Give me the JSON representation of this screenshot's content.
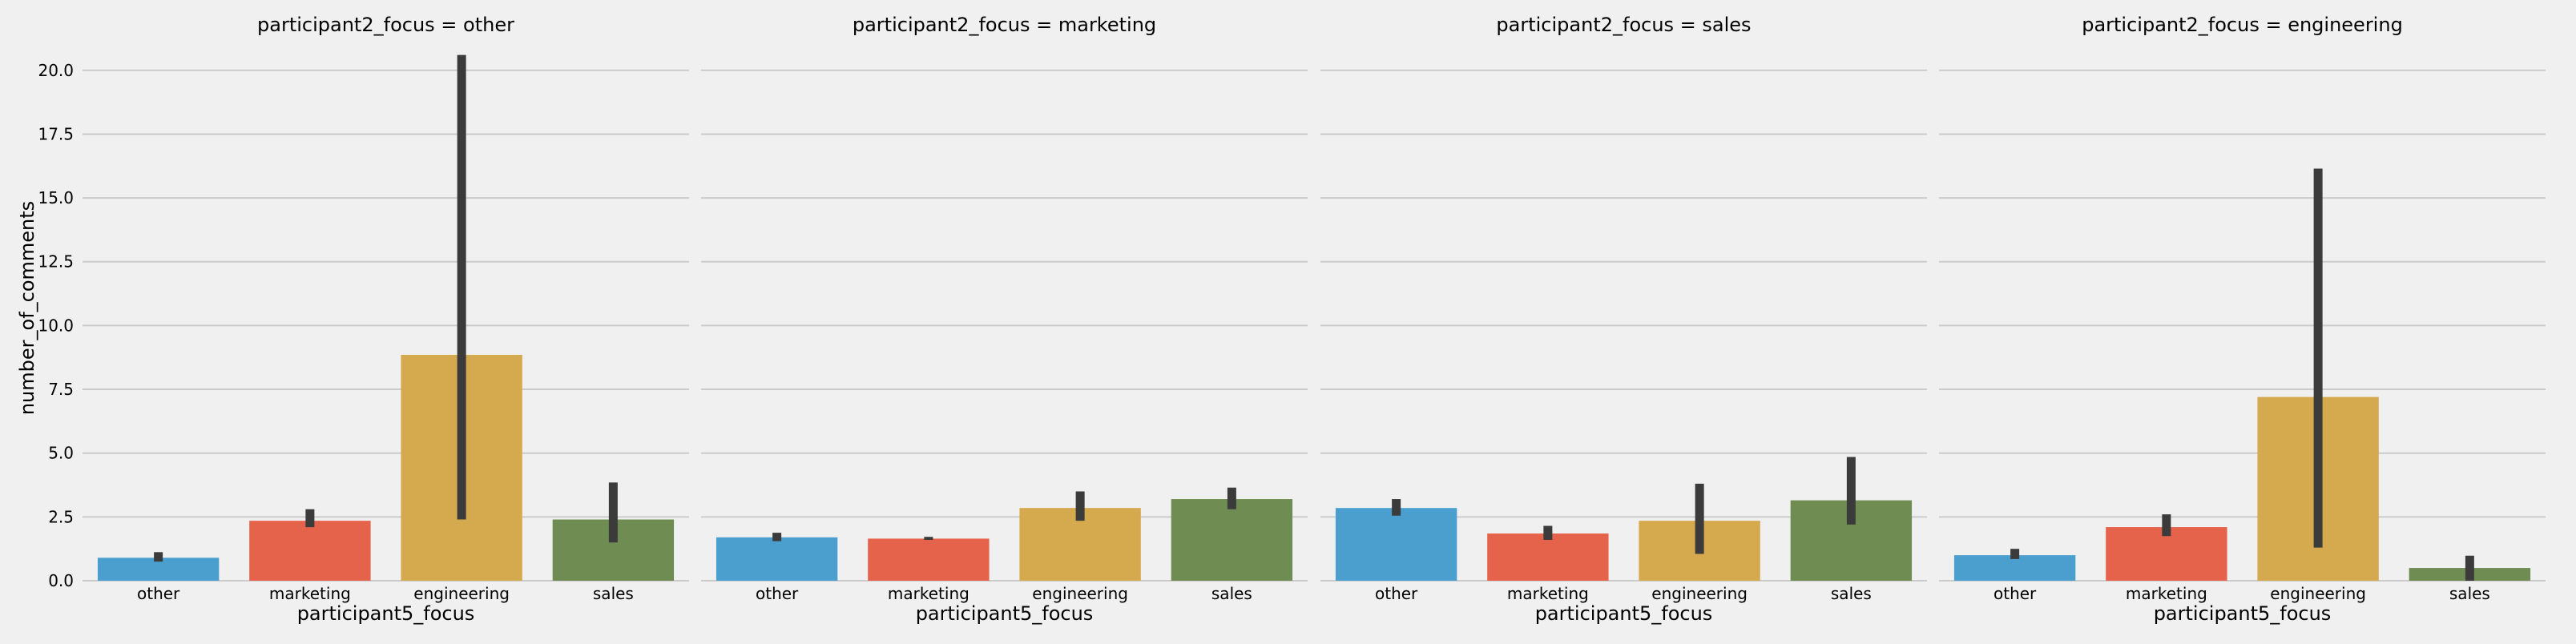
{
  "chart_data": {
    "type": "bar",
    "ylabel": "number_of_comments",
    "xlabel": "participant5_focus",
    "ylim": [
      0,
      21.5
    ],
    "yticks": [
      0.0,
      2.5,
      5.0,
      7.5,
      10.0,
      12.5,
      15.0,
      17.5,
      20.0
    ],
    "ytick_labels": [
      "0.0",
      "2.5",
      "5.0",
      "7.5",
      "10.0",
      "12.5",
      "15.0",
      "17.5",
      "20.0"
    ],
    "grid": "horizontal",
    "categories": [
      "other",
      "marketing",
      "engineering",
      "sales"
    ],
    "colors": [
      "#4a9fcf",
      "#e5634b",
      "#d5a94d",
      "#6f8d53"
    ],
    "errorbar_color": "#3b3b3b",
    "facets": [
      {
        "title": "participant2_focus = other",
        "values": [
          0.9,
          2.35,
          8.85,
          2.4
        ],
        "ci": [
          [
            0.75,
            1.12
          ],
          [
            2.1,
            2.8
          ],
          [
            2.4,
            20.6
          ],
          [
            1.5,
            3.85
          ]
        ]
      },
      {
        "title": "participant2_focus = marketing",
        "values": [
          1.7,
          1.65,
          2.85,
          3.2
        ],
        "ci": [
          [
            1.55,
            1.88
          ],
          [
            1.6,
            1.72
          ],
          [
            2.35,
            3.5
          ],
          [
            2.8,
            3.65
          ]
        ]
      },
      {
        "title": "participant2_focus = sales",
        "values": [
          2.85,
          1.85,
          2.35,
          3.15
        ],
        "ci": [
          [
            2.55,
            3.2
          ],
          [
            1.6,
            2.15
          ],
          [
            1.05,
            3.8
          ],
          [
            2.2,
            4.85
          ]
        ]
      },
      {
        "title": "participant2_focus = engineering",
        "values": [
          1.0,
          2.1,
          7.2,
          0.5
        ],
        "ci": [
          [
            0.85,
            1.25
          ],
          [
            1.75,
            2.6
          ],
          [
            1.3,
            16.15
          ],
          [
            0.0,
            0.98
          ]
        ]
      }
    ]
  }
}
